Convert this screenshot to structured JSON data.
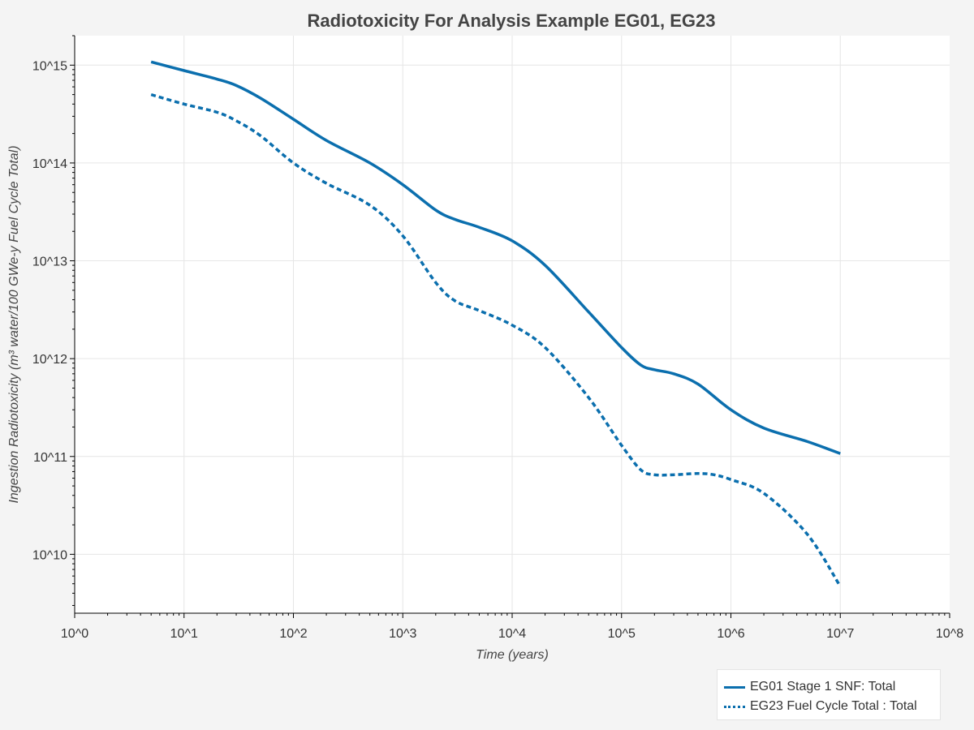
{
  "chart_data": {
    "type": "line",
    "title": "Radiotoxicity For Analysis Example EG01, EG23",
    "xlabel": "Time (years)",
    "ylabel": "Ingestion Radiotoxicity (m³ water/100 GWe-y Fuel Cycle Total)",
    "x_scale": "log",
    "y_scale": "log",
    "xlim": [
      1,
      100000000
    ],
    "ylim": [
      2500000000.0,
      2000000000000000.0
    ],
    "grid": true,
    "legend_position": "bottom-right",
    "x_ticks": [
      {
        "value": 1,
        "label": "10^0"
      },
      {
        "value": 10,
        "label": "10^1"
      },
      {
        "value": 100,
        "label": "10^2"
      },
      {
        "value": 1000,
        "label": "10^3"
      },
      {
        "value": 10000,
        "label": "10^4"
      },
      {
        "value": 100000,
        "label": "10^5"
      },
      {
        "value": 1000000,
        "label": "10^6"
      },
      {
        "value": 10000000,
        "label": "10^7"
      },
      {
        "value": 100000000,
        "label": "10^8"
      }
    ],
    "y_ticks": [
      {
        "value": 10000000000.0,
        "label": "10^10"
      },
      {
        "value": 100000000000.0,
        "label": "10^11"
      },
      {
        "value": 1000000000000.0,
        "label": "10^12"
      },
      {
        "value": 10000000000000.0,
        "label": "10^13"
      },
      {
        "value": 100000000000000.0,
        "label": "10^14"
      },
      {
        "value": 1000000000000000.0,
        "label": "10^15"
      }
    ],
    "series": [
      {
        "name": "EG01 Stage 1 SNF: Total",
        "color": "#0b6fae",
        "style": "solid",
        "x": [
          5,
          10,
          20,
          30,
          50,
          100,
          200,
          500,
          1000,
          2000,
          3000,
          5000,
          10000,
          20000,
          50000,
          100000,
          150000,
          200000,
          300000,
          500000,
          1000000,
          2000000,
          5000000,
          10000000
        ],
        "y": [
          1080000000000000.0,
          880000000000000.0,
          720000000000000.0,
          620000000000000.0,
          460000000000000.0,
          280000000000000.0,
          170000000000000.0,
          100000000000000.0,
          60000000000000.0,
          33000000000000.0,
          26500000000000.0,
          22000000000000.0,
          16000000000000.0,
          9000000000000.0,
          3000000000000.0,
          1300000000000.0,
          860000000000.0,
          770000000000.0,
          700000000000.0,
          550000000000.0,
          300000000000.0,
          195000000000.0,
          142000000000.0,
          107000000000.0
        ]
      },
      {
        "name": "EG23 Fuel Cycle Total : Total",
        "color": "#0b6fae",
        "style": "dashed",
        "x": [
          5,
          10,
          20,
          30,
          50,
          100,
          200,
          500,
          1000,
          2000,
          3000,
          5000,
          10000,
          20000,
          50000,
          100000,
          150000,
          200000,
          300000,
          500000,
          700000,
          1000000,
          2000000,
          5000000,
          10000000
        ],
        "y": [
          500000000000000.0,
          400000000000000.0,
          330000000000000.0,
          270000000000000.0,
          190000000000000.0,
          100000000000000.0,
          62000000000000.0,
          37000000000000.0,
          18000000000000.0,
          6000000000000.0,
          3900000000000.0,
          3100000000000.0,
          2200000000000.0,
          1300000000000.0,
          400000000000.0,
          130000000000.0,
          73000000000.0,
          65000000000.0,
          65000000000.0,
          67000000000.0,
          65000000000.0,
          58000000000.0,
          42000000000.0,
          16000000000.0,
          4700000000.0
        ]
      }
    ]
  }
}
